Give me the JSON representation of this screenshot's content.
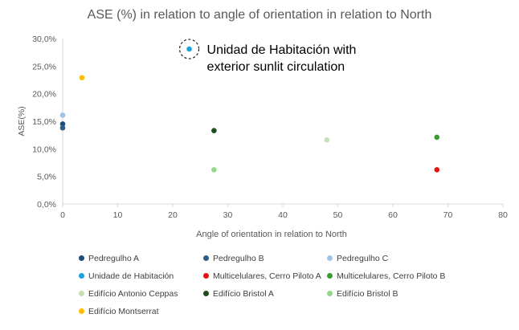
{
  "chart_data": {
    "type": "scatter",
    "title": "ASE (%) in relation to angle of orientation in relation to North",
    "xlabel": "Angle of orientation in relation to North",
    "ylabel": "ASE(%)",
    "xlim": [
      0,
      80
    ],
    "ylim": [
      0,
      30
    ],
    "xticks": [
      "0",
      "10",
      "20",
      "30",
      "40",
      "50",
      "60",
      "70",
      "80"
    ],
    "yticks": [
      "0,0%",
      "5,0%",
      "10,0%",
      "15,0%",
      "20,0%",
      "25,0%",
      "30,0%"
    ],
    "grid": false,
    "legend_position": "bottom",
    "annotation": {
      "lines": [
        "Unidad de Habitación with",
        "exterior sunlit circulation"
      ],
      "target_series": "Unidad de Habitación"
    },
    "series": [
      {
        "name": "Pedregulho A",
        "color": "#1F4E79",
        "points": [
          [
            0,
            14.5
          ]
        ]
      },
      {
        "name": "Pedregulho B",
        "color": "#2E5F8A",
        "points": [
          [
            0,
            13.8
          ]
        ]
      },
      {
        "name": "Pedregulho C",
        "color": "#9DC3E6",
        "points": [
          [
            0,
            16.1
          ]
        ]
      },
      {
        "name": "Unidade de Habitación",
        "color": "#1FA2D8",
        "points": [
          [
            23,
            28.1
          ]
        ]
      },
      {
        "name": "Multicelulares, Cerro Piloto A",
        "color": "#E81010",
        "points": [
          [
            68,
            6.2
          ]
        ]
      },
      {
        "name": "Multicelulares, Cerro Piloto B",
        "color": "#3A9A34",
        "points": [
          [
            68,
            12.1
          ]
        ]
      },
      {
        "name": "Edifício Antonio Ceppas",
        "color": "#C5E0B4",
        "points": [
          [
            48,
            11.6
          ]
        ]
      },
      {
        "name": "Edifício Bristol A",
        "color": "#1E4D1E",
        "points": [
          [
            27.5,
            13.3
          ]
        ]
      },
      {
        "name": "Edifício Bristol B",
        "color": "#8FD98A",
        "points": [
          [
            27.5,
            6.2
          ]
        ]
      },
      {
        "name": "Edifício Montserrat",
        "color": "#FFC000",
        "points": [
          [
            3.5,
            22.9
          ]
        ]
      }
    ]
  }
}
